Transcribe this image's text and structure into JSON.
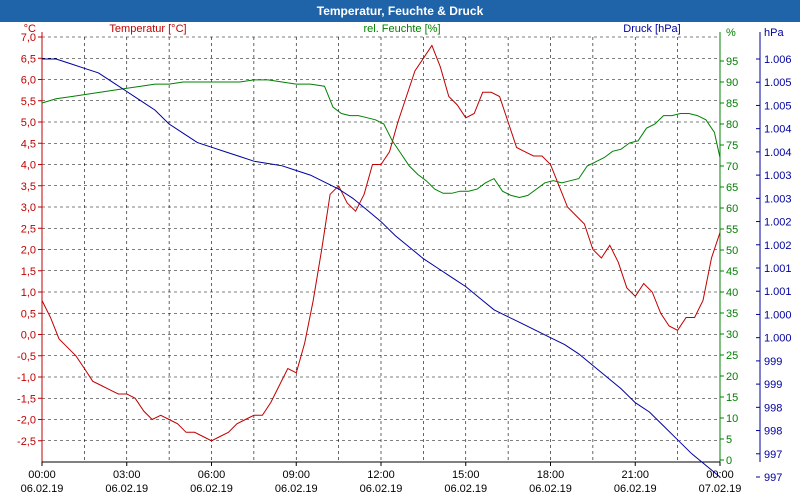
{
  "window": {
    "title": "Temperatur, Feuchte & Druck"
  },
  "colors": {
    "temperature": "#c00000",
    "humidity": "#008000",
    "pressure": "#0000a0",
    "axis": "#000000",
    "grid": "#000000",
    "titlebar": "#1f63a8"
  },
  "chart_data": {
    "type": "line",
    "grid": true,
    "x_ticks": [
      {
        "time": "00:00",
        "date": "06.02.19"
      },
      {
        "time": "03:00",
        "date": "06.02.19"
      },
      {
        "time": "06:00",
        "date": "06.02.19"
      },
      {
        "time": "09:00",
        "date": "06.02.19"
      },
      {
        "time": "12:00",
        "date": "06.02.19"
      },
      {
        "time": "15:00",
        "date": "06.02.19"
      },
      {
        "time": "18:00",
        "date": "06.02.19"
      },
      {
        "time": "21:00",
        "date": "06.02.19"
      },
      {
        "time": "00:00",
        "date": "07.02.19"
      }
    ],
    "xlim_hours": [
      0,
      24
    ],
    "axes": {
      "temperature": {
        "label": "Temperatur [°C]",
        "unit": "°C",
        "ylim": [
          -3.0,
          7.0
        ],
        "ticks": [
          "7,0",
          "6,5",
          "6,0",
          "5,5",
          "5,0",
          "4,5",
          "4,0",
          "3,5",
          "3,0",
          "2,5",
          "2,0",
          "1,5",
          "1,0",
          "0,5",
          "0,0",
          "-0,5",
          "-1,0",
          "-1,5",
          "-2,0",
          "-2,5"
        ]
      },
      "humidity": {
        "label": "rel. Feuchte [%]",
        "unit": "%",
        "ylim": [
          0,
          100
        ],
        "ticks": [
          "95",
          "90",
          "85",
          "80",
          "75",
          "70",
          "65",
          "60",
          "55",
          "50",
          "45",
          "40",
          "35",
          "30",
          "25",
          "20",
          "15",
          "10",
          "5",
          "0"
        ]
      },
      "pressure": {
        "label": "Druck [hPa]",
        "unit": "hPa",
        "ylim": [
          997,
          1006
        ],
        "ticks": [
          "1.006",
          "1.005",
          "1.005",
          "1.004",
          "1.004",
          "1.003",
          "1.003",
          "1.002",
          "1.002",
          "1.001",
          "1.001",
          "1.000",
          "1.000",
          "999",
          "999",
          "998",
          "998",
          "997",
          "997"
        ]
      }
    },
    "series": [
      {
        "name": "Temperatur [°C]",
        "axis": "temperature",
        "x": [
          0,
          0.3,
          0.6,
          0.9,
          1.2,
          1.5,
          1.8,
          2.1,
          2.4,
          2.7,
          3,
          3.3,
          3.6,
          3.9,
          4.2,
          4.5,
          4.8,
          5.1,
          5.4,
          5.7,
          6,
          6.3,
          6.6,
          6.9,
          7.2,
          7.5,
          7.8,
          8.1,
          8.4,
          8.7,
          9,
          9.3,
          9.6,
          9.9,
          10.2,
          10.5,
          10.8,
          11.1,
          11.4,
          11.7,
          12,
          12.3,
          12.6,
          12.9,
          13.2,
          13.5,
          13.8,
          14.1,
          14.4,
          14.7,
          15,
          15.3,
          15.6,
          15.9,
          16.2,
          16.5,
          16.8,
          17.1,
          17.4,
          17.7,
          18,
          18.3,
          18.6,
          18.9,
          19.2,
          19.5,
          19.8,
          20.1,
          20.4,
          20.7,
          21,
          21.3,
          21.6,
          21.9,
          22.2,
          22.5,
          22.8,
          23.1,
          23.4,
          23.7,
          24
        ],
        "y": [
          0.8,
          0.4,
          -0.1,
          -0.3,
          -0.5,
          -0.8,
          -1.1,
          -1.2,
          -1.3,
          -1.4,
          -1.4,
          -1.5,
          -1.8,
          -2.0,
          -1.9,
          -2.0,
          -2.1,
          -2.3,
          -2.3,
          -2.4,
          -2.5,
          -2.4,
          -2.3,
          -2.1,
          -2.0,
          -1.9,
          -1.9,
          -1.6,
          -1.2,
          -0.8,
          -0.9,
          -0.2,
          0.8,
          2.0,
          3.3,
          3.5,
          3.1,
          2.9,
          3.3,
          4.0,
          4.0,
          4.3,
          5.0,
          5.6,
          6.2,
          6.5,
          6.8,
          6.3,
          5.6,
          5.4,
          5.1,
          5.2,
          5.7,
          5.7,
          5.6,
          5.0,
          4.4,
          4.3,
          4.2,
          4.2,
          4.0,
          3.5,
          3.0,
          2.8,
          2.6,
          2.0,
          1.8,
          2.1,
          1.7,
          1.1,
          0.9,
          1.2,
          1.0,
          0.5,
          0.2,
          0.1,
          0.4,
          0.4,
          0.8,
          1.8,
          2.4
        ]
      },
      {
        "name": "rel. Feuchte [%]",
        "axis": "humidity",
        "x": [
          0,
          0.5,
          1,
          1.5,
          2,
          2.5,
          3,
          3.5,
          4,
          4.5,
          5,
          5.5,
          6,
          6.5,
          7,
          7.5,
          8,
          8.5,
          9,
          9.5,
          10,
          10.3,
          10.6,
          10.9,
          11.2,
          11.5,
          11.8,
          12.1,
          12.4,
          12.7,
          13,
          13.3,
          13.6,
          13.9,
          14.2,
          14.5,
          14.8,
          15.1,
          15.4,
          15.7,
          16,
          16.3,
          16.6,
          16.9,
          17.2,
          17.5,
          17.8,
          18.1,
          18.4,
          18.7,
          19,
          19.3,
          19.6,
          19.9,
          20.2,
          20.5,
          20.8,
          21.1,
          21.4,
          21.7,
          22,
          22.3,
          22.6,
          22.9,
          23.2,
          23.5,
          23.8,
          24
        ],
        "y": [
          85,
          86,
          86.5,
          87,
          87.5,
          88,
          88.5,
          89,
          89.5,
          89.5,
          90,
          90,
          90,
          90,
          90,
          90.5,
          90.5,
          90,
          89.5,
          89.5,
          89,
          84,
          82.5,
          82,
          82,
          81.5,
          81,
          80,
          76,
          73,
          70,
          68,
          66.5,
          64.5,
          63.5,
          63.5,
          64,
          64,
          64.5,
          66,
          67,
          64,
          63,
          62.5,
          63,
          64.5,
          66,
          66.5,
          66,
          66.5,
          67,
          70,
          71,
          72,
          73.5,
          74,
          75.5,
          76,
          79,
          80,
          82,
          82,
          82.5,
          82.5,
          82,
          81,
          78,
          72
        ]
      },
      {
        "name": "Druck [hPa]",
        "axis": "pressure",
        "x": [
          0,
          0.5,
          1,
          1.5,
          2,
          2.5,
          3,
          3.5,
          4,
          4.5,
          5,
          5.5,
          6,
          6.5,
          7,
          7.5,
          8,
          8.5,
          9,
          9.5,
          10,
          10.5,
          11,
          11.5,
          12,
          12.5,
          13,
          13.5,
          14,
          14.5,
          15,
          15.5,
          16,
          16.5,
          17,
          17.5,
          18,
          18.5,
          19,
          19.5,
          20,
          20.5,
          21,
          21.5,
          22,
          22.5,
          23,
          23.5,
          24
        ],
        "y": [
          1006.0,
          1006.0,
          1005.9,
          1005.8,
          1005.7,
          1005.5,
          1005.3,
          1005.1,
          1004.9,
          1004.6,
          1004.4,
          1004.2,
          1004.1,
          1004.0,
          1003.9,
          1003.8,
          1003.75,
          1003.7,
          1003.6,
          1003.5,
          1003.35,
          1003.2,
          1003.0,
          1002.75,
          1002.5,
          1002.2,
          1001.95,
          1001.7,
          1001.5,
          1001.3,
          1001.1,
          1000.85,
          1000.6,
          1000.45,
          1000.3,
          1000.15,
          1000.0,
          999.85,
          999.65,
          999.4,
          999.15,
          998.9,
          998.6,
          998.4,
          998.1,
          997.8,
          997.5,
          997.25,
          997.0
        ]
      }
    ]
  }
}
